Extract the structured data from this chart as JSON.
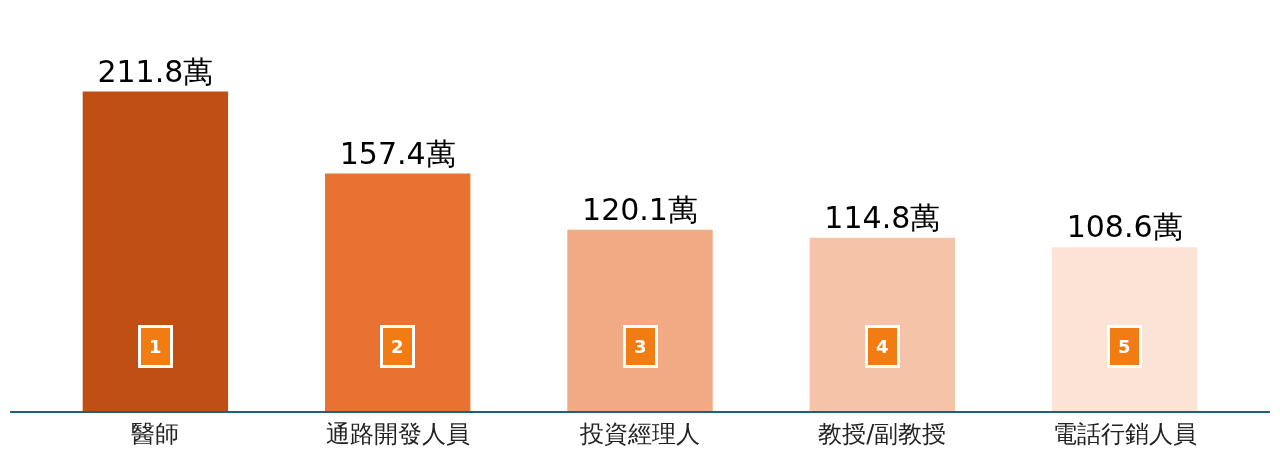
{
  "chart_data": {
    "type": "bar",
    "categories": [
      "醫師",
      "通路開發人員",
      "投資經理人",
      "教授/副教授",
      "電話行銷人員"
    ],
    "values": [
      211.8,
      157.4,
      120.1,
      114.8,
      108.6
    ],
    "colors": [
      "#c04f15",
      "#e97132",
      "#f1aa84",
      "#f5c4a8",
      "#fbe3d6"
    ],
    "value_labels": [
      "211.8萬",
      "157.4萬",
      "120.1萬",
      "114.8萬",
      "108.6萬"
    ],
    "annotations": [
      {
        "text": "1",
        "x": "醫師"
      },
      {
        "text": "2",
        "x": "通路開發人員"
      },
      {
        "text": "3",
        "x": "投資經理人"
      },
      {
        "text": "4",
        "x": "教授/副教授"
      },
      {
        "text": "5",
        "x": "電話行銷人員"
      }
    ]
  }
}
